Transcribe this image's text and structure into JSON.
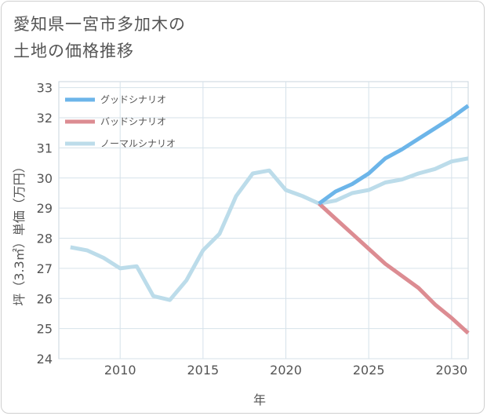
{
  "title_lines": [
    "愛知県一宮市多加木の",
    "土地の価格推移"
  ],
  "chart_data": {
    "type": "line",
    "title": "愛知県一宮市多加木の土地の価格推移",
    "xlabel": "年",
    "ylabel": "坪（3.3㎡）単価（万円）",
    "xlim": [
      2006.3,
      2031
    ],
    "ylim": [
      24,
      33.2
    ],
    "x_ticks": [
      2010,
      2015,
      2020,
      2025,
      2030
    ],
    "y_ticks": [
      24,
      25,
      26,
      27,
      28,
      29,
      30,
      31,
      32,
      33
    ],
    "grid": true,
    "legend_position": "top-left",
    "series": [
      {
        "name": "グッドシナリオ",
        "color": "#6cb5e9",
        "x": [
          2022,
          2023,
          2024,
          2025,
          2026,
          2027,
          2028,
          2029,
          2030,
          2031
        ],
        "values": [
          29.15,
          29.55,
          29.8,
          30.15,
          30.65,
          30.95,
          31.3,
          31.65,
          32.0,
          32.4
        ]
      },
      {
        "name": "バッドシナリオ",
        "color": "#dc8c92",
        "x": [
          2022,
          2023,
          2024,
          2025,
          2026,
          2027,
          2028,
          2029,
          2030,
          2031
        ],
        "values": [
          29.15,
          28.65,
          28.15,
          27.65,
          27.15,
          26.75,
          26.35,
          25.8,
          25.35,
          24.85
        ]
      },
      {
        "name": "ノーマルシナリオ",
        "color": "#bcdcea",
        "x": [
          2007,
          2008,
          2009,
          2010,
          2011,
          2012,
          2013,
          2014,
          2015,
          2016,
          2017,
          2018,
          2019,
          2020,
          2021,
          2022,
          2023,
          2024,
          2025,
          2026,
          2027,
          2028,
          2029,
          2030,
          2031
        ],
        "values": [
          27.7,
          27.6,
          27.35,
          27.0,
          27.07,
          26.08,
          25.95,
          26.6,
          27.6,
          28.15,
          29.4,
          30.15,
          30.25,
          29.6,
          29.4,
          29.15,
          29.25,
          29.5,
          29.6,
          29.85,
          29.95,
          30.15,
          30.3,
          30.55,
          30.65
        ]
      }
    ]
  }
}
